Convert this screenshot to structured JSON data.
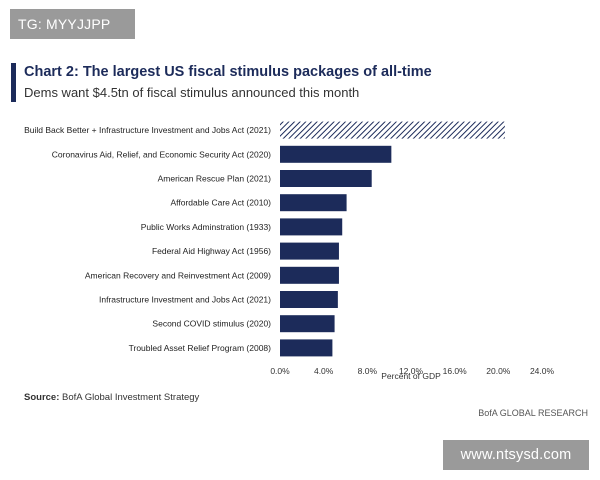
{
  "header_tag": "TG: MYYJJPP",
  "watermark": "www.ntsysd.com",
  "source_label": "Source:",
  "source_text": "BofA Global Investment Strategy",
  "brand": "BofA GLOBAL RESEARCH",
  "colors": {
    "bar": "#1c2b5a",
    "accent": "#1c2b5a"
  },
  "chart_data": {
    "type": "bar",
    "orientation": "horizontal",
    "title": "Chart 2: The largest US fiscal stimulus packages of all-time",
    "subtitle": "Dems want $4.5tn of fiscal stimulus announced this month",
    "xlabel": "Percent of GDP",
    "ylabel": "",
    "xlim": [
      0,
      24
    ],
    "xticks": [
      "0.0%",
      "4.0%",
      "8.0%",
      "12.0%",
      "16.0%",
      "20.0%",
      "24.0%"
    ],
    "categories": [
      "Build Back Better + Infrastructure Investment and Jobs Act (2021)",
      "Coronavirus Aid, Relief, and Economic Security Act (2020)",
      "American Rescue Plan (2021)",
      "Affordable Care Act (2010)",
      "Public Works Adminstration (1933)",
      "Federal Aid Highway Act (1956)",
      "American Recovery and Reinvestment Act (2009)",
      "Infrastructure Investment and Jobs Act (2021)",
      "Second COVID stimulus (2020)",
      "Troubled Asset Relief Program (2008)"
    ],
    "values": [
      20.6,
      10.2,
      8.4,
      6.1,
      5.7,
      5.4,
      5.4,
      5.3,
      5.0,
      4.8
    ],
    "hatched": [
      true,
      false,
      false,
      false,
      false,
      false,
      false,
      false,
      false,
      false
    ],
    "grid": false,
    "legend": "none"
  }
}
